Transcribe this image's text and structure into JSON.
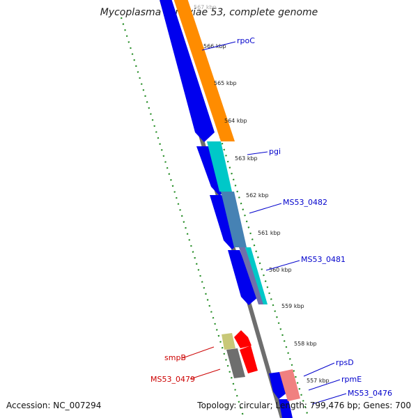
{
  "title": "Mycoplasma synoviae 53, complete genome",
  "footer": {
    "accession": "Accession: NC_007294",
    "topology": "Topology: circular; Length: 799,476 bp; Genes: 700"
  },
  "scale": {
    "top_label": "567 kbp",
    "ticks": [
      "566 kbp",
      "565 kbp",
      "564 kbp",
      "563 kbp",
      "562 kbp",
      "561 kbp",
      "560 kbp",
      "559 kbp",
      "558 kbp",
      "557 kbp"
    ]
  },
  "genes": {
    "rpoC": "rpoC",
    "pgi": "pgi",
    "ms53_0482": "MS53_0482",
    "ms53_0481": "MS53_0481",
    "smpB": "smpB",
    "ms53_0479": "MS53_0479",
    "rpsD": "rpsD",
    "rpmE": "rpmE",
    "ms53_0476": "MS53_0476"
  },
  "colors": {
    "cds": "#0000ee",
    "rna_orange": "#ff8c00",
    "cyan": "#00c8c8",
    "steelblue": "#4682b4",
    "olive": "#c8c878",
    "gray": "#696969",
    "red": "#ff0000",
    "salmon": "#f08080",
    "scale_tick": "#228b22",
    "label_blue": "#0000cc",
    "label_red": "#cc0000"
  }
}
